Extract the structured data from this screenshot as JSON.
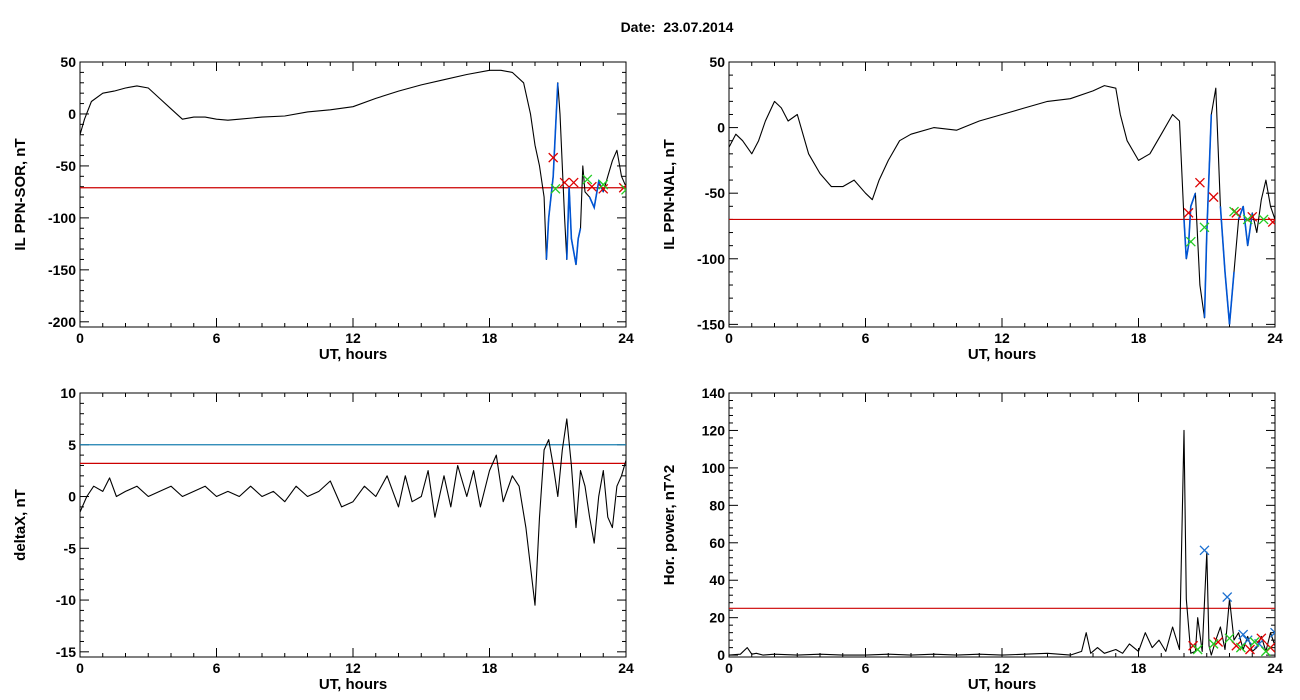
{
  "title": "Date:  23.07.2014",
  "colors": {
    "signal": "#000000",
    "threshold": "#cc0000",
    "threshold2": "#1a7fb0",
    "segment": "#0055d4",
    "mark_red": "#dd0000",
    "mark_green": "#22cc22",
    "mark_blue": "#1a6fd0"
  },
  "chart_data": [
    {
      "type": "line",
      "xlabel": "UT, hours",
      "ylabel": "IL PPN-SOR, nT",
      "xlim": [
        0,
        24
      ],
      "ylim": [
        -205,
        50
      ],
      "xticks": [
        0,
        6,
        12,
        18,
        24
      ],
      "yticks": [
        -200,
        -150,
        -100,
        -50,
        0,
        50
      ],
      "grid": false,
      "threshold_lines": [
        {
          "y": -71,
          "color": "red"
        }
      ],
      "series": [
        {
          "x": [
            0,
            0.2,
            0.5,
            1,
            1.5,
            2,
            2.5,
            3,
            3.5,
            4,
            4.5,
            5,
            5.5,
            6,
            6.5,
            7,
            8,
            9,
            10,
            11,
            12,
            13,
            14,
            15,
            16,
            17,
            18,
            18.5,
            19,
            19.5,
            19.8,
            20,
            20.2,
            20.4,
            20.5,
            20.6,
            20.8,
            21,
            21.1,
            21.3,
            21.4,
            21.5,
            21.6,
            21.8,
            21.9,
            22,
            22.1,
            22.2,
            22.4,
            22.6,
            22.8,
            23,
            23.2,
            23.4,
            23.6,
            23.8,
            24
          ],
          "y": [
            -20,
            -5,
            12,
            20,
            22,
            25,
            27,
            25,
            15,
            5,
            -5,
            -3,
            -3,
            -5,
            -6,
            -5,
            -3,
            -2,
            2,
            4,
            7,
            15,
            22,
            28,
            33,
            38,
            42,
            42,
            40,
            30,
            0,
            -30,
            -50,
            -80,
            -140,
            -100,
            -60,
            30,
            0,
            -100,
            -140,
            -70,
            -120,
            -145,
            -120,
            -110,
            -50,
            -75,
            -80,
            -90,
            -65,
            -75,
            -60,
            -45,
            -35,
            -60,
            -70
          ]
        }
      ],
      "markers": {
        "red": [
          [
            20.8,
            -42
          ],
          [
            21.3,
            -66
          ],
          [
            21.7,
            -66
          ],
          [
            22.5,
            -70
          ],
          [
            23.0,
            -72
          ],
          [
            23.9,
            -71
          ]
        ],
        "green": [
          [
            20.9,
            -72
          ],
          [
            22.3,
            -63
          ],
          [
            23.0,
            -68
          ],
          [
            24.0,
            -73
          ]
        ]
      },
      "highlight_ranges": [
        [
          20.5,
          21.0
        ],
        [
          21.4,
          22.0
        ],
        [
          22.4,
          23.0
        ]
      ]
    },
    {
      "type": "line",
      "xlabel": "UT, hours",
      "ylabel": "IL PPN-NAL, nT",
      "xlim": [
        0,
        24
      ],
      "ylim": [
        -152,
        50
      ],
      "xticks": [
        0,
        6,
        12,
        18,
        24
      ],
      "yticks": [
        -150,
        -100,
        -50,
        0,
        50
      ],
      "grid": false,
      "threshold_lines": [
        {
          "y": -70,
          "color": "red"
        }
      ],
      "series": [
        {
          "x": [
            0,
            0.3,
            0.6,
            1,
            1.3,
            1.6,
            2,
            2.3,
            2.6,
            3,
            3.5,
            4,
            4.5,
            5,
            5.5,
            6,
            6.3,
            6.6,
            7,
            7.5,
            8,
            9,
            10,
            11,
            12,
            13,
            14,
            15,
            16,
            16.5,
            17,
            17.2,
            17.5,
            18,
            18.5,
            19,
            19.5,
            19.8,
            20,
            20.1,
            20.2,
            20.3,
            20.5,
            20.7,
            20.9,
            21,
            21.2,
            21.4,
            21.6,
            21.8,
            22,
            22.2,
            22.4,
            22.6,
            22.8,
            23,
            23.2,
            23.4,
            23.6,
            23.8,
            24
          ],
          "y": [
            -15,
            -5,
            -10,
            -20,
            -10,
            5,
            20,
            15,
            5,
            10,
            -20,
            -35,
            -45,
            -45,
            -40,
            -50,
            -55,
            -40,
            -25,
            -10,
            -5,
            0,
            -2,
            5,
            10,
            15,
            20,
            22,
            28,
            32,
            30,
            10,
            -10,
            -25,
            -20,
            -5,
            10,
            5,
            -70,
            -100,
            -90,
            -60,
            -50,
            -120,
            -145,
            -80,
            10,
            30,
            -60,
            -110,
            -150,
            -110,
            -70,
            -60,
            -90,
            -65,
            -80,
            -55,
            -40,
            -60,
            -70
          ]
        }
      ],
      "markers": {
        "red": [
          [
            20.2,
            -65
          ],
          [
            20.7,
            -42
          ],
          [
            21.3,
            -53
          ],
          [
            22.3,
            -65
          ],
          [
            23.0,
            -68
          ],
          [
            23.9,
            -72
          ]
        ],
        "green": [
          [
            20.3,
            -87
          ],
          [
            20.9,
            -76
          ],
          [
            22.2,
            -64
          ],
          [
            22.8,
            -70
          ],
          [
            23.5,
            -70
          ]
        ]
      },
      "highlight_ranges": [
        [
          20.0,
          20.6
        ],
        [
          20.8,
          21.2
        ],
        [
          21.6,
          22.2
        ],
        [
          22.4,
          23.0
        ]
      ]
    },
    {
      "type": "line",
      "xlabel": "UT, hours",
      "ylabel": "deltaX, nT",
      "xlim": [
        0,
        24
      ],
      "ylim": [
        -15.5,
        10
      ],
      "xticks": [
        0,
        6,
        12,
        18,
        24
      ],
      "yticks": [
        -15,
        -10,
        -5,
        0,
        5,
        10
      ],
      "grid": false,
      "threshold_lines": [
        {
          "y": 5,
          "color": "blue"
        },
        {
          "y": 3.2,
          "color": "red"
        }
      ],
      "series": [
        {
          "x": [
            0,
            0.3,
            0.6,
            1,
            1.3,
            1.6,
            2,
            2.5,
            3,
            3.5,
            4,
            4.5,
            5,
            5.5,
            6,
            6.5,
            7,
            7.5,
            8,
            8.5,
            9,
            9.5,
            10,
            10.5,
            11,
            11.5,
            12,
            12.5,
            13,
            13.5,
            14,
            14.3,
            14.6,
            15,
            15.3,
            15.6,
            16,
            16.3,
            16.6,
            17,
            17.3,
            17.6,
            18,
            18.3,
            18.6,
            19,
            19.3,
            19.6,
            20,
            20.2,
            20.4,
            20.6,
            20.8,
            21,
            21.2,
            21.4,
            21.6,
            21.8,
            22,
            22.2,
            22.4,
            22.6,
            22.8,
            23,
            23.2,
            23.4,
            23.6,
            23.8,
            24
          ],
          "y": [
            -1.5,
            0,
            1,
            0.5,
            1.8,
            0,
            0.5,
            1,
            0,
            0.5,
            1,
            0,
            0.5,
            1,
            0,
            0.5,
            0,
            1,
            0,
            0.5,
            -0.5,
            1,
            0,
            0.5,
            1.5,
            -1,
            -0.5,
            1,
            0,
            2,
            -1,
            2,
            -0.5,
            0,
            2.5,
            -2,
            2,
            -1,
            3,
            0,
            2.5,
            -1,
            2.5,
            4,
            -0.5,
            2,
            1,
            -3,
            -10.5,
            -2,
            4.5,
            5.5,
            3,
            0,
            4.5,
            7.5,
            3,
            -3,
            2.5,
            1,
            -2,
            -4.5,
            0,
            2.5,
            -2,
            -3,
            1,
            2,
            3.5
          ]
        }
      ],
      "markers": {
        "red": [],
        "green": []
      },
      "highlight_ranges": []
    },
    {
      "type": "line",
      "xlabel": "UT, hours",
      "ylabel": "Hor. power, nT^2",
      "xlim": [
        0,
        24
      ],
      "ylim": [
        -1,
        140
      ],
      "xticks": [
        0,
        6,
        12,
        18,
        24
      ],
      "yticks": [
        0,
        20,
        40,
        60,
        80,
        100,
        120,
        140
      ],
      "grid": false,
      "threshold_lines": [
        {
          "y": 25,
          "color": "red"
        }
      ],
      "series": [
        {
          "x": [
            0,
            0.5,
            0.8,
            1,
            1.2,
            1.5,
            2,
            3,
            4,
            5,
            6,
            7,
            8,
            9,
            10,
            11,
            12,
            13,
            14,
            15,
            15.5,
            15.7,
            15.9,
            16.2,
            16.5,
            17,
            17.3,
            17.6,
            18,
            18.3,
            18.6,
            18.9,
            19.2,
            19.5,
            19.8,
            20,
            20.1,
            20.3,
            20.5,
            20.6,
            20.8,
            21,
            21.1,
            21.2,
            21.4,
            21.6,
            21.8,
            22,
            22.2,
            22.4,
            22.6,
            22.8,
            23,
            23.2,
            23.4,
            23.6,
            23.8,
            24
          ],
          "y": [
            0,
            0.5,
            4,
            0.5,
            1,
            0,
            0.5,
            0,
            0.5,
            0,
            0,
            0.5,
            0,
            0.5,
            0,
            0.5,
            0,
            0.5,
            1,
            0,
            2,
            12,
            1,
            4,
            1,
            3,
            1,
            6,
            2,
            12,
            4,
            8,
            2,
            15,
            3,
            120,
            30,
            1,
            2,
            20,
            2,
            55,
            5,
            0,
            8,
            15,
            3,
            30,
            8,
            12,
            3,
            10,
            2,
            4,
            10,
            2,
            12,
            5
          ]
        }
      ],
      "markers": {
        "blue": [
          [
            20.9,
            56
          ],
          [
            21.9,
            31
          ],
          [
            22.6,
            11
          ],
          [
            22.8,
            8
          ],
          [
            23.3,
            6
          ],
          [
            24.0,
            12
          ]
        ],
        "red": [
          [
            20.4,
            5
          ],
          [
            21.5,
            7
          ],
          [
            22.3,
            5
          ],
          [
            22.9,
            3
          ],
          [
            23.4,
            9
          ],
          [
            23.8,
            4
          ]
        ],
        "green": [
          [
            20.6,
            3
          ],
          [
            21.3,
            6
          ],
          [
            22.0,
            9
          ],
          [
            22.5,
            4
          ],
          [
            23.1,
            7
          ],
          [
            23.6,
            2
          ]
        ]
      },
      "highlight_ranges": []
    }
  ]
}
